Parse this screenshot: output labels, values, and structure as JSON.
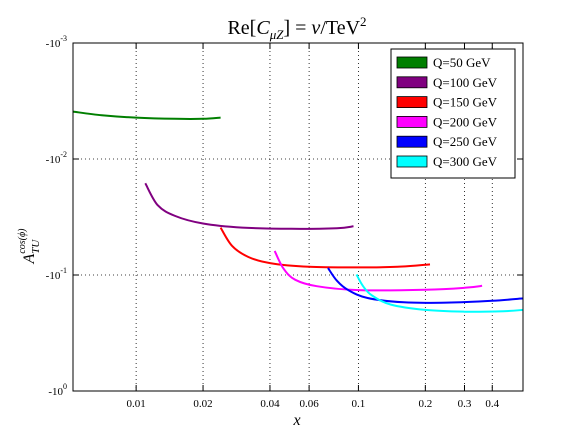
{
  "chart_data": {
    "type": "line",
    "title": "Re[C_μZ] = v/TeV²",
    "title_parts": {
      "re": "Re[",
      "c": "C",
      "sub": "μZ",
      "close": "]",
      "eq": " = ",
      "v": "v",
      "slash": "/TeV",
      "sup": "2"
    },
    "xlabel": "x",
    "ylabel": "A",
    "ylabel_sub": "TU",
    "ylabel_sup": "cos(ϕ)",
    "x_scale": "log",
    "y_scale": "log",
    "y_sign": "negative",
    "xlim": [
      0.0052,
      0.55
    ],
    "ylim_magnitude": [
      0.001,
      1
    ],
    "x_ticks": [
      {
        "value": 0.01,
        "label": "0.01"
      },
      {
        "value": 0.02,
        "label": "0.02"
      },
      {
        "value": 0.04,
        "label": "0.04"
      },
      {
        "value": 0.06,
        "label": "0.06"
      },
      {
        "value": 0.1,
        "label": "0.1"
      },
      {
        "value": 0.2,
        "label": "0.2"
      },
      {
        "value": 0.3,
        "label": "0.3"
      },
      {
        "value": 0.4,
        "label": "0.4"
      }
    ],
    "y_ticks": [
      {
        "value": 0.001,
        "base": "-10",
        "exp": "-3"
      },
      {
        "value": 0.01,
        "base": "-10",
        "exp": "-2"
      },
      {
        "value": 0.1,
        "base": "-10",
        "exp": "-1"
      },
      {
        "value": 1,
        "base": "-10",
        "exp": "0"
      }
    ],
    "grid": true,
    "legend_position": "top-right",
    "series": [
      {
        "name": "Q=50 GeV",
        "color": "#007f00",
        "x": [
          0.0052,
          0.007,
          0.01,
          0.015,
          0.02,
          0.024
        ],
        "y": [
          -0.0039,
          -0.0042,
          -0.0044,
          -0.0045,
          -0.0045,
          -0.0044
        ]
      },
      {
        "name": "Q=100 GeV",
        "color": "#800080",
        "x": [
          0.011,
          0.0125,
          0.015,
          0.02,
          0.03,
          0.05,
          0.08,
          0.095
        ],
        "y": [
          -0.0162,
          -0.025,
          -0.031,
          -0.036,
          -0.039,
          -0.04,
          -0.0395,
          -0.038
        ]
      },
      {
        "name": "Q=150 GeV",
        "color": "#ff0000",
        "x": [
          0.024,
          0.027,
          0.032,
          0.04,
          0.06,
          0.1,
          0.15,
          0.21
        ],
        "y": [
          -0.039,
          -0.056,
          -0.07,
          -0.079,
          -0.085,
          -0.086,
          -0.085,
          -0.081
        ]
      },
      {
        "name": "Q=200 GeV",
        "color": "#ff00ff",
        "x": [
          0.042,
          0.046,
          0.052,
          0.065,
          0.1,
          0.2,
          0.3,
          0.36
        ],
        "y": [
          -0.062,
          -0.088,
          -0.11,
          -0.125,
          -0.135,
          -0.134,
          -0.129,
          -0.124
        ]
      },
      {
        "name": "Q=250 GeV",
        "color": "#0000ff",
        "x": [
          0.073,
          0.08,
          0.09,
          0.11,
          0.16,
          0.25,
          0.4,
          0.55
        ],
        "y": [
          -0.087,
          -0.112,
          -0.135,
          -0.158,
          -0.172,
          -0.173,
          -0.167,
          -0.159
        ]
      },
      {
        "name": "Q=300 GeV",
        "color": "#00ffff",
        "x": [
          0.098,
          0.105,
          0.115,
          0.14,
          0.2,
          0.3,
          0.45,
          0.55
        ],
        "y": [
          -0.099,
          -0.125,
          -0.15,
          -0.18,
          -0.2,
          -0.207,
          -0.205,
          -0.2
        ]
      }
    ]
  }
}
